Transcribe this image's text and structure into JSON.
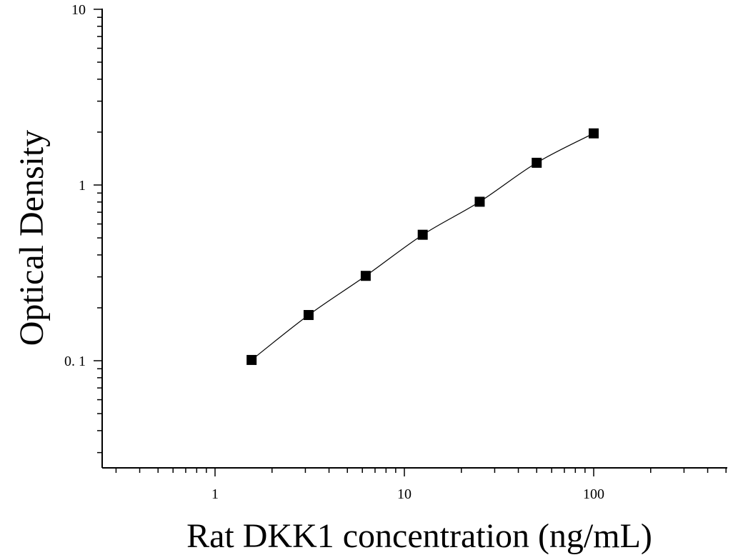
{
  "chart_data": {
    "type": "scatter",
    "title": "",
    "xlabel": "Rat DKK1 concentration (ng/mL)",
    "ylabel": "Optical Density",
    "x_scale": "log",
    "y_scale": "log",
    "xlim": [
      0.25,
      600
    ],
    "ylim": [
      0.026,
      10
    ],
    "x_ticks": [
      {
        "value": 1,
        "label": "1"
      },
      {
        "value": 10,
        "label": "10"
      },
      {
        "value": 100,
        "label": "100"
      }
    ],
    "y_ticks": [
      {
        "value": 0.1,
        "label": "0. 1"
      },
      {
        "value": 1,
        "label": "1"
      },
      {
        "value": 10,
        "label": "10"
      }
    ],
    "grid": false,
    "legend": "none",
    "series": [
      {
        "marker": "square",
        "color": "#000000",
        "fit_line": true,
        "points": [
          {
            "x": 1.56,
            "y": 0.101
          },
          {
            "x": 3.12,
            "y": 0.182
          },
          {
            "x": 6.25,
            "y": 0.304
          },
          {
            "x": 12.5,
            "y": 0.521
          },
          {
            "x": 25,
            "y": 0.803
          },
          {
            "x": 50,
            "y": 1.338
          },
          {
            "x": 100,
            "y": 1.967
          }
        ]
      }
    ]
  }
}
